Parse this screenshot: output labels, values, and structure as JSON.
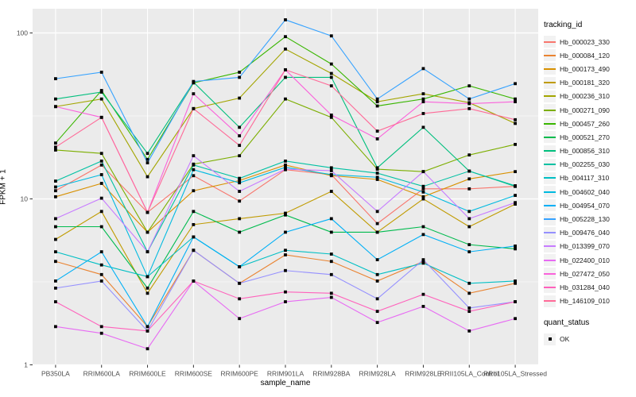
{
  "figure": {
    "background": "#FFFFFF",
    "panel_background": "#EBEBEB",
    "grid_color": "#FFFFFF",
    "axis_text_color": "#4D4D4D",
    "tick_color": "#333333",
    "text_color": "#000000",
    "point_color": "#000000"
  },
  "axes": {
    "x_label": "sample_name",
    "y_label": "FPKM + 1",
    "y_ticks": [
      "1",
      "10",
      "100"
    ]
  },
  "legend": {
    "tracking_title": "tracking_id",
    "quant_title": "quant_status",
    "quant_items": [
      "OK"
    ]
  },
  "chart_data": {
    "type": "line",
    "title": "",
    "xlabel": "sample_name",
    "ylabel": "FPKM + 1",
    "y_scale": "log10",
    "ylim": [
      1,
      130
    ],
    "grid": true,
    "legend_position": "right",
    "marker": "small black square (quant_status = OK)",
    "categories": [
      "PB350LA",
      "RRIM600LA",
      "RRIM600LE",
      "RRIM600SE",
      "RRIM600PE",
      "RRIM901LA",
      "RRIM928BA",
      "RRIM928LA",
      "RRIM928LE",
      "RRII105LA_Control",
      "RRII105LA_Stressed"
    ],
    "series": [
      {
        "name": "Hb_000023_330",
        "color": "#F8766D",
        "values": [
          11.2,
          16.0,
          8.3,
          13.8,
          9.7,
          15.0,
          14.0,
          7.1,
          11.5,
          11.5,
          11.9
        ]
      },
      {
        "name": "Hb_000084_120",
        "color": "#EA8331",
        "values": [
          4.2,
          3.5,
          1.7,
          4.9,
          3.1,
          4.6,
          4.2,
          3.2,
          4.2,
          2.7,
          3.1
        ]
      },
      {
        "name": "Hb_000173_490",
        "color": "#D89000",
        "values": [
          10.3,
          12.4,
          6.3,
          11.2,
          12.9,
          16.0,
          13.8,
          13.1,
          10.3,
          13.2,
          14.6
        ]
      },
      {
        "name": "Hb_000181_320",
        "color": "#C09B00",
        "values": [
          5.7,
          8.4,
          2.7,
          7.0,
          7.6,
          8.2,
          11.1,
          6.3,
          10.0,
          6.8,
          9.3
        ]
      },
      {
        "name": "Hb_000236_310",
        "color": "#A3A500",
        "values": [
          36,
          40,
          13.6,
          35,
          40.5,
          80,
          57,
          38.5,
          43,
          38,
          28.5
        ]
      },
      {
        "name": "Hb_000271_090",
        "color": "#7CAE00",
        "values": [
          19.7,
          18.8,
          6.3,
          16.2,
          18.2,
          40,
          31,
          15.1,
          14.6,
          18.4,
          21.3
        ]
      },
      {
        "name": "Hb_000457_260",
        "color": "#39B600",
        "values": [
          21.7,
          45,
          17.3,
          50,
          58,
          95,
          65,
          36.3,
          40,
          48,
          40
        ]
      },
      {
        "name": "Hb_000521_270",
        "color": "#00BB4E",
        "values": [
          6.8,
          6.8,
          2.9,
          8.4,
          6.3,
          8.0,
          6.3,
          6.3,
          6.8,
          5.3,
          5.0
        ]
      },
      {
        "name": "Hb_000856_310",
        "color": "#00BF7D",
        "values": [
          40,
          44,
          18.8,
          50.5,
          27,
          54,
          54,
          15.4,
          27,
          14.7,
          11.9
        ]
      },
      {
        "name": "Hb_002255_030",
        "color": "#00C1A3",
        "values": [
          12.8,
          16.9,
          4.8,
          16.0,
          13.3,
          16.9,
          15.4,
          14.3,
          11.9,
          14.7,
          12.0
        ]
      },
      {
        "name": "Hb_004117_310",
        "color": "#00BFC4",
        "values": [
          4.8,
          4.0,
          3.4,
          5.9,
          3.9,
          4.9,
          4.65,
          3.5,
          4.1,
          3.1,
          3.2
        ]
      },
      {
        "name": "Hb_004602_040",
        "color": "#00BAE0",
        "values": [
          11.8,
          14.0,
          3.4,
          15.0,
          12.5,
          15.5,
          14.0,
          13.5,
          11.0,
          8.4,
          10.5
        ]
      },
      {
        "name": "Hb_004954_070",
        "color": "#00B0F6",
        "values": [
          3.2,
          4.8,
          1.7,
          5.9,
          3.9,
          6.3,
          7.6,
          4.3,
          6.1,
          4.8,
          5.2
        ]
      },
      {
        "name": "Hb_005228_130",
        "color": "#35A2FF",
        "values": [
          53,
          58,
          16.5,
          51,
          54,
          120,
          96,
          40,
          61,
          40,
          49.5
        ]
      },
      {
        "name": "Hb_009476_040",
        "color": "#9590FF",
        "values": [
          2.9,
          3.2,
          1.6,
          4.9,
          3.1,
          3.7,
          3.5,
          2.5,
          4.3,
          2.2,
          2.4
        ]
      },
      {
        "name": "Hb_013399_070",
        "color": "#C77CFF",
        "values": [
          7.6,
          10.1,
          4.8,
          18.2,
          11.1,
          15.1,
          14.8,
          8.4,
          14.6,
          7.6,
          9.5
        ]
      },
      {
        "name": "Hb_022400_010",
        "color": "#E76BF3",
        "values": [
          1.7,
          1.55,
          1.25,
          3.2,
          1.9,
          2.4,
          2.55,
          1.8,
          2.25,
          1.6,
          1.9
        ]
      },
      {
        "name": "Hb_027472_050",
        "color": "#FA62DB",
        "values": [
          36,
          31,
          8.3,
          43,
          24,
          60,
          32,
          23,
          38.5,
          37.5,
          38.5
        ]
      },
      {
        "name": "Hb_031284_040",
        "color": "#FF62BC",
        "values": [
          2.4,
          1.7,
          1.6,
          3.2,
          2.5,
          2.75,
          2.7,
          2.1,
          2.66,
          2.1,
          2.4
        ]
      },
      {
        "name": "Hb_146109_010",
        "color": "#FF6A98",
        "values": [
          20.5,
          31,
          8.3,
          35,
          21,
          60,
          48,
          25.6,
          32.7,
          35,
          30
        ]
      }
    ]
  }
}
